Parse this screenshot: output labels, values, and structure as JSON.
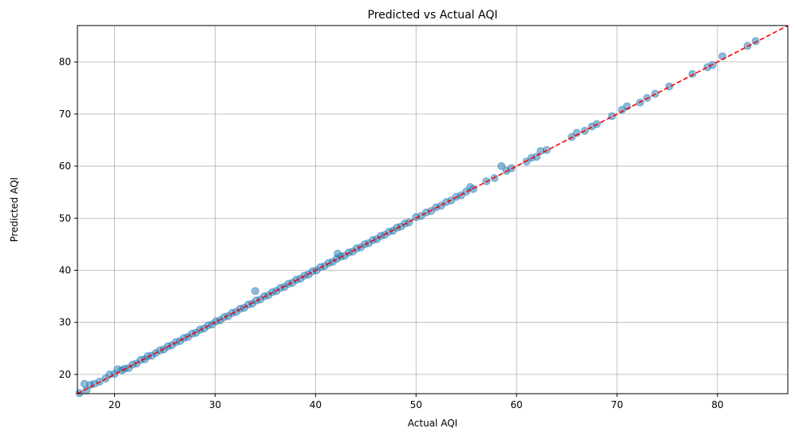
{
  "chart_data": {
    "type": "scatter",
    "title": "Predicted vs Actual AQI",
    "xlabel": "Actual AQI",
    "ylabel": "Predicted AQI",
    "xlim": [
      16.3,
      87.0
    ],
    "ylim": [
      16.3,
      87.0
    ],
    "xticks": [
      20,
      30,
      40,
      50,
      60,
      70,
      80
    ],
    "yticks": [
      20,
      30,
      40,
      50,
      60,
      70,
      80
    ],
    "grid": true,
    "legend": "none",
    "colors": {
      "points": "#1f77b4",
      "reference_line": "#ff0000",
      "grid": "#b0b0b0",
      "axes": "#000000"
    },
    "reference_line": {
      "style": "dashed",
      "from": [
        16.3,
        16.3
      ],
      "to": [
        87.0,
        87.0
      ]
    },
    "series": [
      {
        "x": [
          16.5,
          17.0,
          17.2,
          17.6,
          18.0,
          18.5,
          19.1,
          19.5,
          20.0,
          20.3,
          20.7,
          21.0,
          21.4,
          21.8,
          22.2,
          22.6,
          23.0,
          23.3,
          23.7,
          24.1,
          24.5,
          24.9,
          25.3,
          25.7,
          26.1,
          26.5,
          26.9,
          27.3,
          27.7,
          28.1,
          28.5,
          28.9,
          29.3,
          29.7,
          30.1,
          30.5,
          30.9,
          31.3,
          31.7,
          32.1,
          32.5,
          32.9,
          33.3,
          33.7,
          34.0,
          34.1,
          34.5,
          34.9,
          35.3,
          35.7,
          36.1,
          36.5,
          36.9,
          37.3,
          37.7,
          38.1,
          38.5,
          38.9,
          39.3,
          39.7,
          40.1,
          40.5,
          40.9,
          41.3,
          41.7,
          42.1,
          42.2,
          42.5,
          42.9,
          43.3,
          43.7,
          44.1,
          44.5,
          44.9,
          45.3,
          45.7,
          46.1,
          46.5,
          46.9,
          47.3,
          47.7,
          48.1,
          48.5,
          48.9,
          49.3,
          50.0,
          50.5,
          51.0,
          51.5,
          52.0,
          52.5,
          53.0,
          53.5,
          54.0,
          54.5,
          55.0,
          55.4,
          55.7,
          57.0,
          57.8,
          58.5,
          59.0,
          59.5,
          61.0,
          61.5,
          62.0,
          62.4,
          63.0,
          65.5,
          66.0,
          66.8,
          67.5,
          68.0,
          69.5,
          70.5,
          71.0,
          72.3,
          73.0,
          73.8,
          75.2,
          77.5,
          79.0,
          79.5,
          80.5,
          83.0,
          83.8
        ],
        "y": [
          16.4,
          18.2,
          17.0,
          18.0,
          18.2,
          18.6,
          19.2,
          20.0,
          20.1,
          21.0,
          20.8,
          21.1,
          21.2,
          21.9,
          22.1,
          22.8,
          22.9,
          23.5,
          23.6,
          24.1,
          24.6,
          24.8,
          25.4,
          25.6,
          26.2,
          26.4,
          27.0,
          27.2,
          27.8,
          28.0,
          28.6,
          28.8,
          29.4,
          29.6,
          30.2,
          30.4,
          31.0,
          31.2,
          31.8,
          32.0,
          32.6,
          32.8,
          33.4,
          33.6,
          36.0,
          34.2,
          34.4,
          35.0,
          35.2,
          35.8,
          36.0,
          36.6,
          36.8,
          37.4,
          37.6,
          38.2,
          38.4,
          39.0,
          39.2,
          39.8,
          40.0,
          40.6,
          40.8,
          41.4,
          41.6,
          42.2,
          43.2,
          42.6,
          42.8,
          43.4,
          43.6,
          44.2,
          44.4,
          45.0,
          45.2,
          45.8,
          46.0,
          46.6,
          46.8,
          47.4,
          47.6,
          48.2,
          48.4,
          49.0,
          49.2,
          50.2,
          50.4,
          51.1,
          51.4,
          52.1,
          52.4,
          53.1,
          53.4,
          54.1,
          54.4,
          55.1,
          56.0,
          55.6,
          57.1,
          57.7,
          60.0,
          59.1,
          59.6,
          60.9,
          61.6,
          61.8,
          62.9,
          63.1,
          65.6,
          66.4,
          66.8,
          67.6,
          68.1,
          69.6,
          70.8,
          71.5,
          72.2,
          73.1,
          73.9,
          75.3,
          77.7,
          79.0,
          79.4,
          81.1,
          83.1,
          84.0
        ]
      }
    ]
  }
}
